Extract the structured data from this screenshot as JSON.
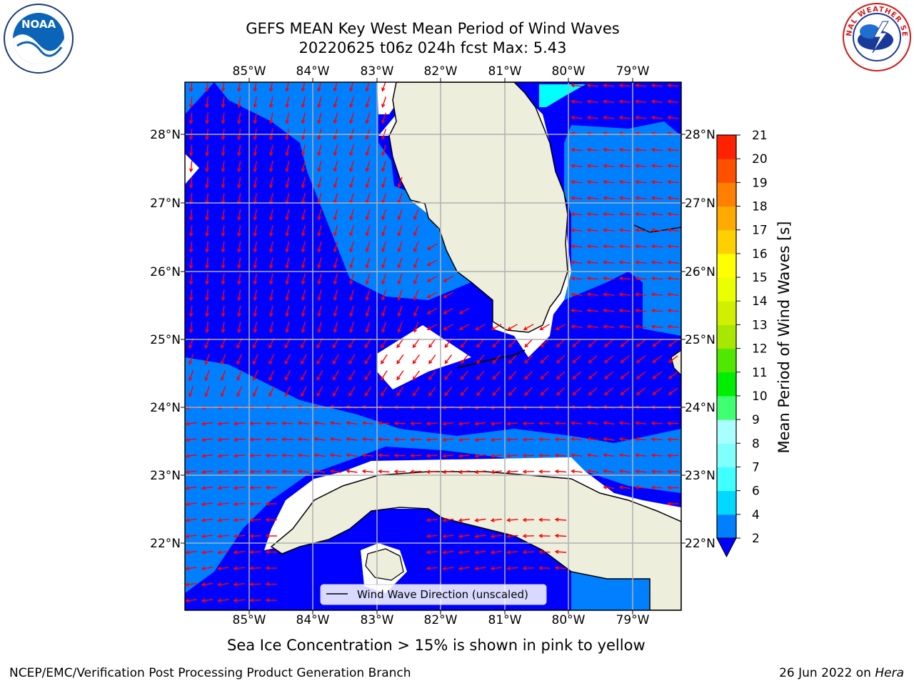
{
  "title": {
    "line1": "GEFS MEAN Key West Mean Period of Wind Waves",
    "line2": "20220625 t06z 024h fcst   Max: 5.43"
  },
  "map": {
    "lon_labels": [
      "85°W",
      "84°W",
      "83°W",
      "82°W",
      "81°W",
      "80°W",
      "79°W"
    ],
    "lat_labels": [
      "28°N",
      "27°N",
      "26°N",
      "25°N",
      "24°N",
      "23°N",
      "22°N"
    ],
    "legend_label": "Wind Wave Direction (unscaled)",
    "arrow_color": "#ff0000",
    "land_color": "#eeeedc",
    "shade_colors": {
      "dark": "#0000ff",
      "light": "#0080ff",
      "cyan": "#00ffff",
      "missing": "#ffffff"
    }
  },
  "colorbar": {
    "label": "Mean Period of Wind Waves [s]",
    "ticks": [
      "2",
      "4",
      "6",
      "7",
      "8",
      "9",
      "10",
      "11",
      "12",
      "13",
      "14",
      "15",
      "16",
      "17",
      "18",
      "19",
      "20",
      "21"
    ],
    "colors": [
      "#0080ff",
      "#00d8ff",
      "#40ffff",
      "#80ffff",
      "#a8ffff",
      "#40ff70",
      "#00ee00",
      "#50e800",
      "#a8e800",
      "#d0f000",
      "#eaff00",
      "#ffff00",
      "#ffd000",
      "#ffaa00",
      "#ff8000",
      "#ff5000",
      "#ff2200"
    ],
    "under_color": "#0000ff"
  },
  "caption": "Sea Ice Concentration > 15% is shown in pink to yellow",
  "footer": {
    "left": "NCEP/EMC/Verification Post Processing Product Generation Branch",
    "right_date": "26 Jun 2022 on ",
    "right_host": "Hera"
  },
  "logos": {
    "noaa_text": "NOAA",
    "nws_text": "NATIONAL WEATHER SERVICE"
  }
}
